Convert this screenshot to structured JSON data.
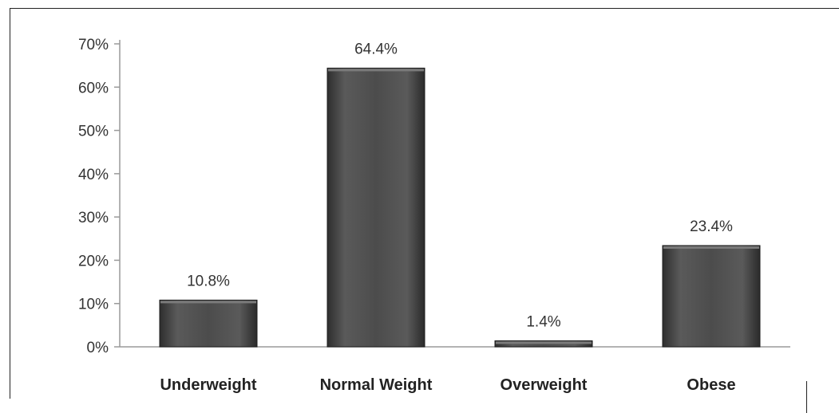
{
  "chart_data": {
    "type": "bar",
    "categories": [
      "Underweight",
      "Normal Weight",
      "Overweight",
      "Obese"
    ],
    "values": [
      10.8,
      64.4,
      1.4,
      23.4
    ],
    "data_labels": [
      "10.8%",
      "64.4%",
      "1.4%",
      "23.4%"
    ],
    "y_ticks": [
      0,
      10,
      20,
      30,
      40,
      50,
      60,
      70
    ],
    "y_tick_labels": [
      "0%",
      "10%",
      "20%",
      "30%",
      "40%",
      "50%",
      "60%",
      "70%"
    ],
    "ylim": [
      0,
      70
    ],
    "grid": false,
    "legend": "none",
    "bar_color": "#4a4a4a"
  }
}
